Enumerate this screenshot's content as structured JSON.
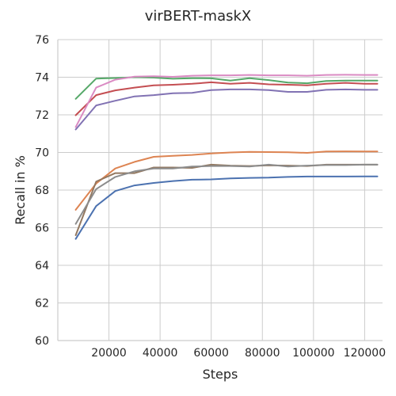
{
  "chart_data": {
    "type": "line",
    "title": "virBERT-maskX",
    "xlabel": "Steps",
    "ylabel": "Recall in %",
    "xlim": [
      0,
      127000
    ],
    "ylim": [
      60,
      76
    ],
    "xticks": [
      20000,
      40000,
      60000,
      80000,
      100000,
      120000
    ],
    "yticks": [
      60,
      62,
      64,
      66,
      68,
      70,
      72,
      74,
      76
    ],
    "grid": true,
    "x": [
      7000,
      15000,
      22500,
      30000,
      37500,
      45000,
      52500,
      60000,
      67500,
      75000,
      82500,
      90000,
      97500,
      105000,
      112500,
      120000,
      125000
    ],
    "series": [
      {
        "color": "#4c72b0",
        "values": [
          65.4,
          67.15,
          67.95,
          68.25,
          68.38,
          68.48,
          68.55,
          68.57,
          68.62,
          68.65,
          68.66,
          68.7,
          68.72,
          68.72,
          68.72,
          68.73,
          68.73
        ]
      },
      {
        "color": "#dd8452",
        "values": [
          66.95,
          68.35,
          69.15,
          69.5,
          69.77,
          69.82,
          69.87,
          69.95,
          70.0,
          70.03,
          70.02,
          70.01,
          69.98,
          70.05,
          70.06,
          70.05,
          70.05
        ]
      },
      {
        "color": "#55a868",
        "values": [
          72.85,
          73.93,
          73.96,
          74.0,
          73.98,
          73.92,
          73.95,
          73.94,
          73.82,
          73.95,
          73.85,
          73.72,
          73.68,
          73.8,
          73.82,
          73.82,
          73.82
        ]
      },
      {
        "color": "#c44e52",
        "values": [
          71.98,
          73.05,
          73.3,
          73.45,
          73.57,
          73.6,
          73.65,
          73.73,
          73.65,
          73.7,
          73.62,
          73.6,
          73.57,
          73.65,
          73.7,
          73.65,
          73.65
        ]
      },
      {
        "color": "#8172b3",
        "values": [
          71.22,
          72.5,
          72.75,
          72.98,
          73.05,
          73.15,
          73.17,
          73.32,
          73.35,
          73.35,
          73.32,
          73.22,
          73.22,
          73.33,
          73.35,
          73.33,
          73.33
        ]
      },
      {
        "color": "#937860",
        "values": [
          65.6,
          68.45,
          68.9,
          68.9,
          69.2,
          69.2,
          69.18,
          69.35,
          69.3,
          69.28,
          69.32,
          69.3,
          69.28,
          69.35,
          69.35,
          69.35,
          69.35
        ]
      },
      {
        "color": "#da8bc3",
        "values": [
          71.35,
          73.45,
          73.87,
          74.03,
          74.05,
          74.02,
          74.08,
          74.1,
          74.1,
          74.12,
          74.1,
          74.1,
          74.08,
          74.12,
          74.13,
          74.12,
          74.12
        ]
      },
      {
        "color": "#8c8c8c",
        "values": [
          66.2,
          68.05,
          68.7,
          69.0,
          69.15,
          69.15,
          69.25,
          69.28,
          69.28,
          69.25,
          69.35,
          69.25,
          69.3,
          69.33,
          69.33,
          69.35,
          69.35
        ]
      }
    ]
  }
}
